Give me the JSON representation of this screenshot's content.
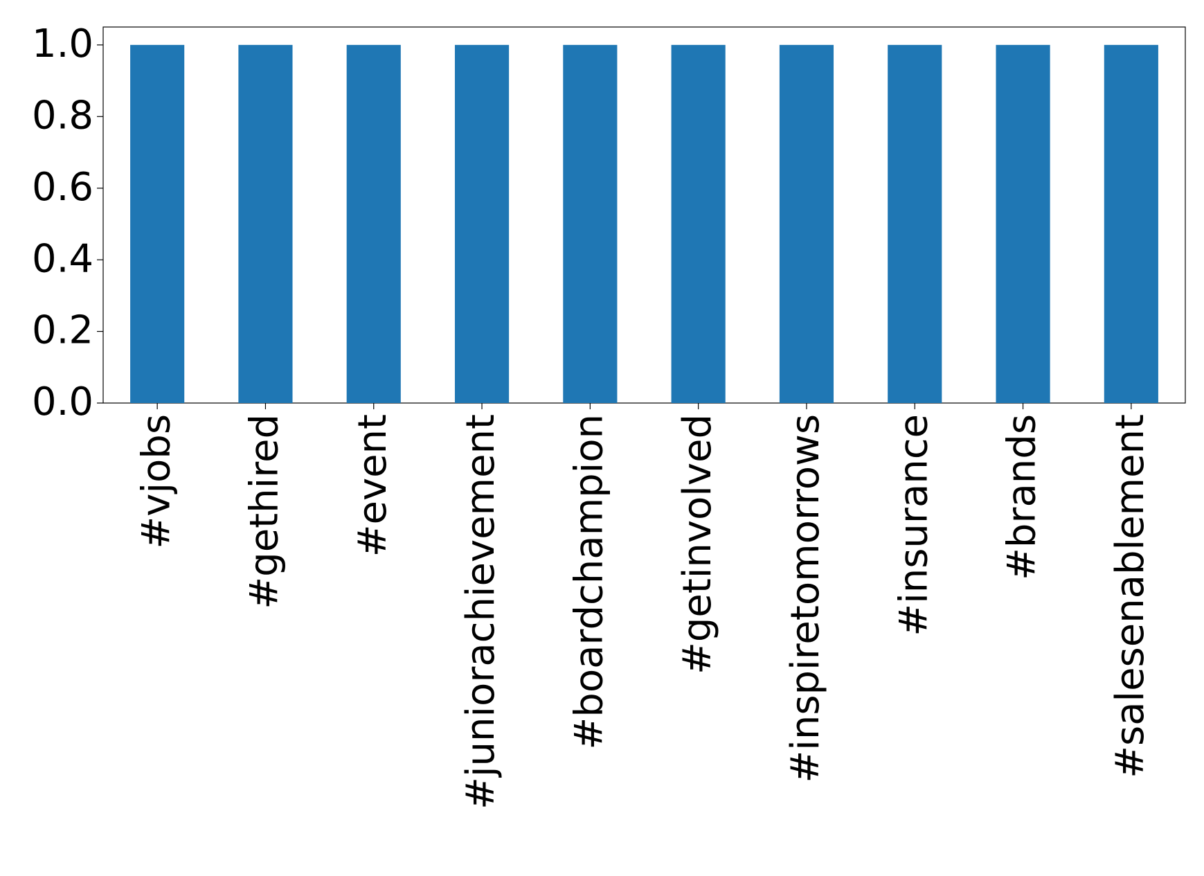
{
  "chart_data": {
    "type": "bar",
    "categories": [
      "#vjobs",
      "#gethired",
      "#event",
      "#juniorachievement",
      "#boardchampion",
      "#getinvolved",
      "#inspiretomorrows",
      "#insurance",
      "#brands",
      "#salesenablement"
    ],
    "values": [
      1,
      1,
      1,
      1,
      1,
      1,
      1,
      1,
      1,
      1
    ],
    "color": "#1f77b4",
    "ylim": [
      0,
      1.05
    ],
    "yticks": [
      {
        "value": 0,
        "label": "0.0"
      },
      0.2,
      0.4,
      0.6,
      0.8,
      {
        "value": 1,
        "label": "1.0"
      }
    ],
    "grid": false
  }
}
